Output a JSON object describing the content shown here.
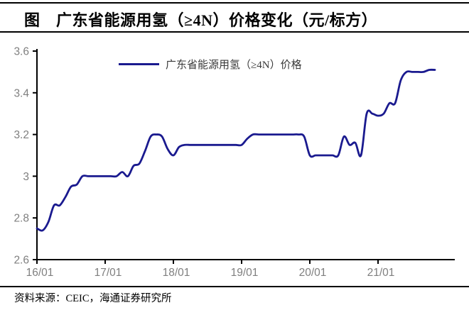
{
  "title": "图　广东省能源用氢（≥4N）价格变化（元/标方）",
  "source_note": "资料来源：CEIC，海通证券研究所",
  "colors": {
    "line": "#1A1A8F",
    "axis_line": "#000000",
    "tick_label": "#7f7f7f",
    "legend_text": "#3a3a3a",
    "rule": "#000000"
  },
  "chart_data": {
    "type": "line",
    "title": "广东省能源用氢（≥4N）价格变化（元/标方）",
    "legend": [
      "广东省能源用氢（≥4N）价格"
    ],
    "legend_position": "top-center",
    "grid": false,
    "smoothed": true,
    "ylim": [
      2.6,
      3.6
    ],
    "y_ticks": [
      2.6,
      2.8,
      3.0,
      3.2,
      3.4,
      3.6
    ],
    "y_tick_labels": [
      "2.6",
      "2.8",
      "3",
      "3.2",
      "3.4",
      "3.6"
    ],
    "x_tick_labels": [
      "16/01",
      "17/01",
      "18/01",
      "19/01",
      "20/01",
      "21/01"
    ],
    "x": [
      "16/01",
      "16/02",
      "16/03",
      "16/04",
      "16/05",
      "16/06",
      "16/07",
      "16/08",
      "16/09",
      "16/10",
      "16/11",
      "16/12",
      "17/01",
      "17/02",
      "17/03",
      "17/04",
      "17/05",
      "17/06",
      "17/07",
      "17/08",
      "17/09",
      "17/10",
      "17/11",
      "17/12",
      "18/01",
      "18/02",
      "18/03",
      "18/04",
      "18/05",
      "18/06",
      "18/07",
      "18/08",
      "18/09",
      "18/10",
      "18/11",
      "18/12",
      "19/01",
      "19/02",
      "19/03",
      "19/04",
      "19/05",
      "19/06",
      "19/07",
      "19/08",
      "19/09",
      "19/10",
      "19/11",
      "19/12",
      "20/01",
      "20/02",
      "20/03",
      "20/04",
      "20/05",
      "20/06",
      "20/07",
      "20/08",
      "20/09",
      "20/10",
      "20/11",
      "20/12",
      "21/01",
      "21/02",
      "21/03",
      "21/04",
      "21/05",
      "21/06",
      "21/07",
      "21/08",
      "21/09",
      "21/10",
      "21/11"
    ],
    "series": [
      {
        "name": "广东省能源用氢（≥4N）价格",
        "values": [
          2.75,
          2.74,
          2.78,
          2.86,
          2.86,
          2.9,
          2.95,
          2.96,
          3.0,
          3.0,
          3.0,
          3.0,
          3.0,
          3.0,
          3.0,
          3.02,
          3.0,
          3.05,
          3.06,
          3.12,
          3.19,
          3.2,
          3.19,
          3.13,
          3.1,
          3.14,
          3.15,
          3.15,
          3.15,
          3.15,
          3.15,
          3.15,
          3.15,
          3.15,
          3.15,
          3.15,
          3.15,
          3.18,
          3.2,
          3.2,
          3.2,
          3.2,
          3.2,
          3.2,
          3.2,
          3.2,
          3.2,
          3.19,
          3.1,
          3.1,
          3.1,
          3.1,
          3.1,
          3.1,
          3.19,
          3.15,
          3.16,
          3.1,
          3.3,
          3.3,
          3.29,
          3.3,
          3.35,
          3.35,
          3.46,
          3.5,
          3.5,
          3.5,
          3.5,
          3.51,
          3.51
        ]
      }
    ]
  }
}
